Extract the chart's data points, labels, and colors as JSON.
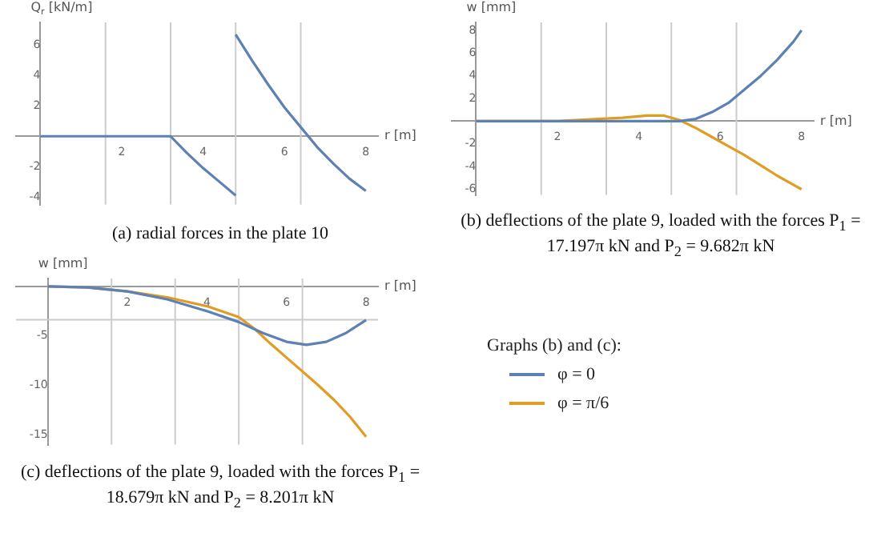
{
  "chart_data": [
    {
      "type": "line",
      "xlabel": "r [m]",
      "ylabel": "Q$_{r}$ [kN/m]",
      "xlim": [
        -0.6,
        8.3
      ],
      "ylim": [
        -4.5,
        7.5
      ],
      "xticks": [
        2,
        4,
        6,
        8
      ],
      "yticks": [
        -4,
        -2,
        2,
        4,
        6
      ],
      "grid": false,
      "ref_lines": [
        {
          "axis": "x",
          "value": 1.6,
          "color": "#cccccc"
        },
        {
          "axis": "x",
          "value": 3.2,
          "color": "#cccccc"
        },
        {
          "axis": "x",
          "value": 4.8,
          "color": "#cccccc"
        },
        {
          "axis": "x",
          "value": 6.4,
          "color": "#cccccc"
        }
      ],
      "series": [
        {
          "color": "#5e81b5",
          "x": [
            0,
            3.2,
            3.6,
            4,
            4.4,
            4.8
          ],
          "values": [
            0,
            0,
            -1.1,
            -2.1,
            -3,
            -3.9
          ]
        },
        {
          "color": "#5e81b5",
          "x": [
            4.8,
            5.2,
            5.6,
            6,
            6.4,
            6.8,
            7.2,
            7.6,
            8
          ],
          "values": [
            6.7,
            5,
            3.4,
            1.9,
            0.6,
            -0.7,
            -1.8,
            -2.8,
            -3.6
          ]
        }
      ],
      "annotations": [
        "(a) radial forces in the plate 10"
      ]
    },
    {
      "type": "line",
      "xlabel": "r [m]",
      "ylabel": "w [mm]",
      "xlim": [
        -0.6,
        8.3
      ],
      "ylim": [
        -6.5,
        8.7
      ],
      "xticks": [
        2,
        4,
        6,
        8
      ],
      "yticks": [
        -6,
        -4,
        -2,
        2,
        4,
        6,
        8
      ],
      "grid": false,
      "ref_lines": [
        {
          "axis": "x",
          "value": 1.6,
          "color": "#cccccc"
        },
        {
          "axis": "x",
          "value": 3.2,
          "color": "#cccccc"
        },
        {
          "axis": "x",
          "value": 4.8,
          "color": "#cccccc"
        },
        {
          "axis": "x",
          "value": 6.4,
          "color": "#cccccc"
        }
      ],
      "series": [
        {
          "color": "#5e81b5",
          "x": [
            0,
            2,
            4,
            5,
            5.4,
            5.8,
            6.2,
            6.6,
            7,
            7.4,
            7.8,
            8
          ],
          "values": [
            0,
            0,
            0,
            0,
            0.2,
            0.8,
            1.6,
            2.8,
            4,
            5.4,
            7,
            8
          ]
        },
        {
          "color": "#e19c24",
          "x": [
            0,
            1,
            2,
            3,
            3.6,
            4.2,
            4.6,
            5,
            5.4,
            5.8,
            6.2,
            6.6,
            7,
            7.4,
            7.8,
            8
          ],
          "values": [
            0,
            0,
            0,
            0.2,
            0.3,
            0.5,
            0.5,
            0.1,
            -0.6,
            -1.4,
            -2.2,
            -3,
            -3.9,
            -4.8,
            -5.6,
            -6
          ]
        }
      ],
      "annotations": [
        "(b) deflections of the plate 9, loaded with the forces P$_{1}$ = 17.197π kN and P$_{2}$ = 9.682π kN"
      ]
    },
    {
      "type": "line",
      "xlabel": "r [m]",
      "ylabel": "w [mm]",
      "xlim": [
        -0.8,
        8.3
      ],
      "ylim": [
        -16,
        0.8
      ],
      "xticks": [
        2,
        4,
        6,
        8
      ],
      "yticks": [
        -15,
        -10,
        -5
      ],
      "grid": false,
      "ref_lines": [
        {
          "axis": "x",
          "value": 1.6,
          "color": "#cccccc"
        },
        {
          "axis": "x",
          "value": 3.2,
          "color": "#cccccc"
        },
        {
          "axis": "x",
          "value": 4.8,
          "color": "#cccccc"
        },
        {
          "axis": "x",
          "value": 6.4,
          "color": "#cccccc"
        },
        {
          "axis": "y",
          "value": -3.36,
          "color": "#cccccc"
        }
      ],
      "legend": "right",
      "legend_title": "Graphs (b) and (c):",
      "series": [
        {
          "name": "φ = 0",
          "color": "#5e81b5",
          "x": [
            0,
            1,
            2,
            3,
            4,
            4.8,
            5.4,
            6,
            6.5,
            7,
            7.5,
            8
          ],
          "values": [
            0,
            -0.1,
            -0.5,
            -1.3,
            -2.5,
            -3.6,
            -4.7,
            -5.6,
            -5.9,
            -5.6,
            -4.7,
            -3.4
          ]
        },
        {
          "name": "φ = π/6",
          "color": "#e19c24",
          "x": [
            0,
            1,
            2,
            3,
            4,
            4.8,
            5.2,
            5.6,
            6,
            6.4,
            6.8,
            7.2,
            7.6,
            8
          ],
          "values": [
            0,
            -0.1,
            -0.5,
            -1.1,
            -2,
            -3.1,
            -4.3,
            -5.8,
            -7.2,
            -8.6,
            -10,
            -11.5,
            -13.2,
            -15.2
          ]
        }
      ],
      "annotations": [
        "(c) deflections of the plate 9, loaded with the forces P$_{1}$ = 18.679π kN and P$_{2}$ = 8.201π kN"
      ]
    }
  ]
}
